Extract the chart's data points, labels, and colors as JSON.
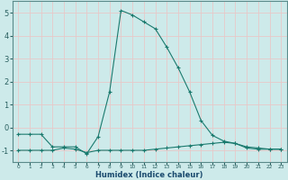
{
  "xlabel": "Humidex (Indice chaleur)",
  "x_values": [
    0,
    1,
    2,
    3,
    4,
    5,
    6,
    7,
    8,
    9,
    10,
    11,
    12,
    13,
    14,
    15,
    16,
    17,
    18,
    19,
    20,
    21,
    22,
    23
  ],
  "line1_y": [
    -0.3,
    -0.3,
    -0.3,
    -0.85,
    -0.85,
    -0.85,
    -1.15,
    -0.4,
    1.55,
    5.1,
    4.9,
    4.6,
    4.3,
    3.5,
    2.6,
    1.55,
    0.3,
    -0.35,
    -0.6,
    -0.7,
    -0.9,
    -0.95,
    -0.95,
    -0.95
  ],
  "line2_y": [
    -1.0,
    -1.0,
    -1.0,
    -1.0,
    -0.9,
    -0.95,
    -1.1,
    -1.0,
    -1.0,
    -1.0,
    -1.0,
    -1.0,
    -0.95,
    -0.9,
    -0.85,
    -0.8,
    -0.75,
    -0.7,
    -0.65,
    -0.7,
    -0.85,
    -0.9,
    -0.95,
    -0.95
  ],
  "line_color": "#1a7a6e",
  "bg_color": "#cdeaea",
  "grid_color": "#e8c8c8",
  "ylim": [
    -1.5,
    5.5
  ],
  "xlim": [
    -0.5,
    23.5
  ],
  "yticks": [
    -1,
    0,
    1,
    2,
    3,
    4,
    5
  ],
  "xticks": [
    0,
    1,
    2,
    3,
    4,
    5,
    6,
    7,
    8,
    9,
    10,
    11,
    12,
    13,
    14,
    15,
    16,
    17,
    18,
    19,
    20,
    21,
    22,
    23
  ],
  "tick_color": "#2a6060",
  "xlabel_color": "#1a4a6e"
}
